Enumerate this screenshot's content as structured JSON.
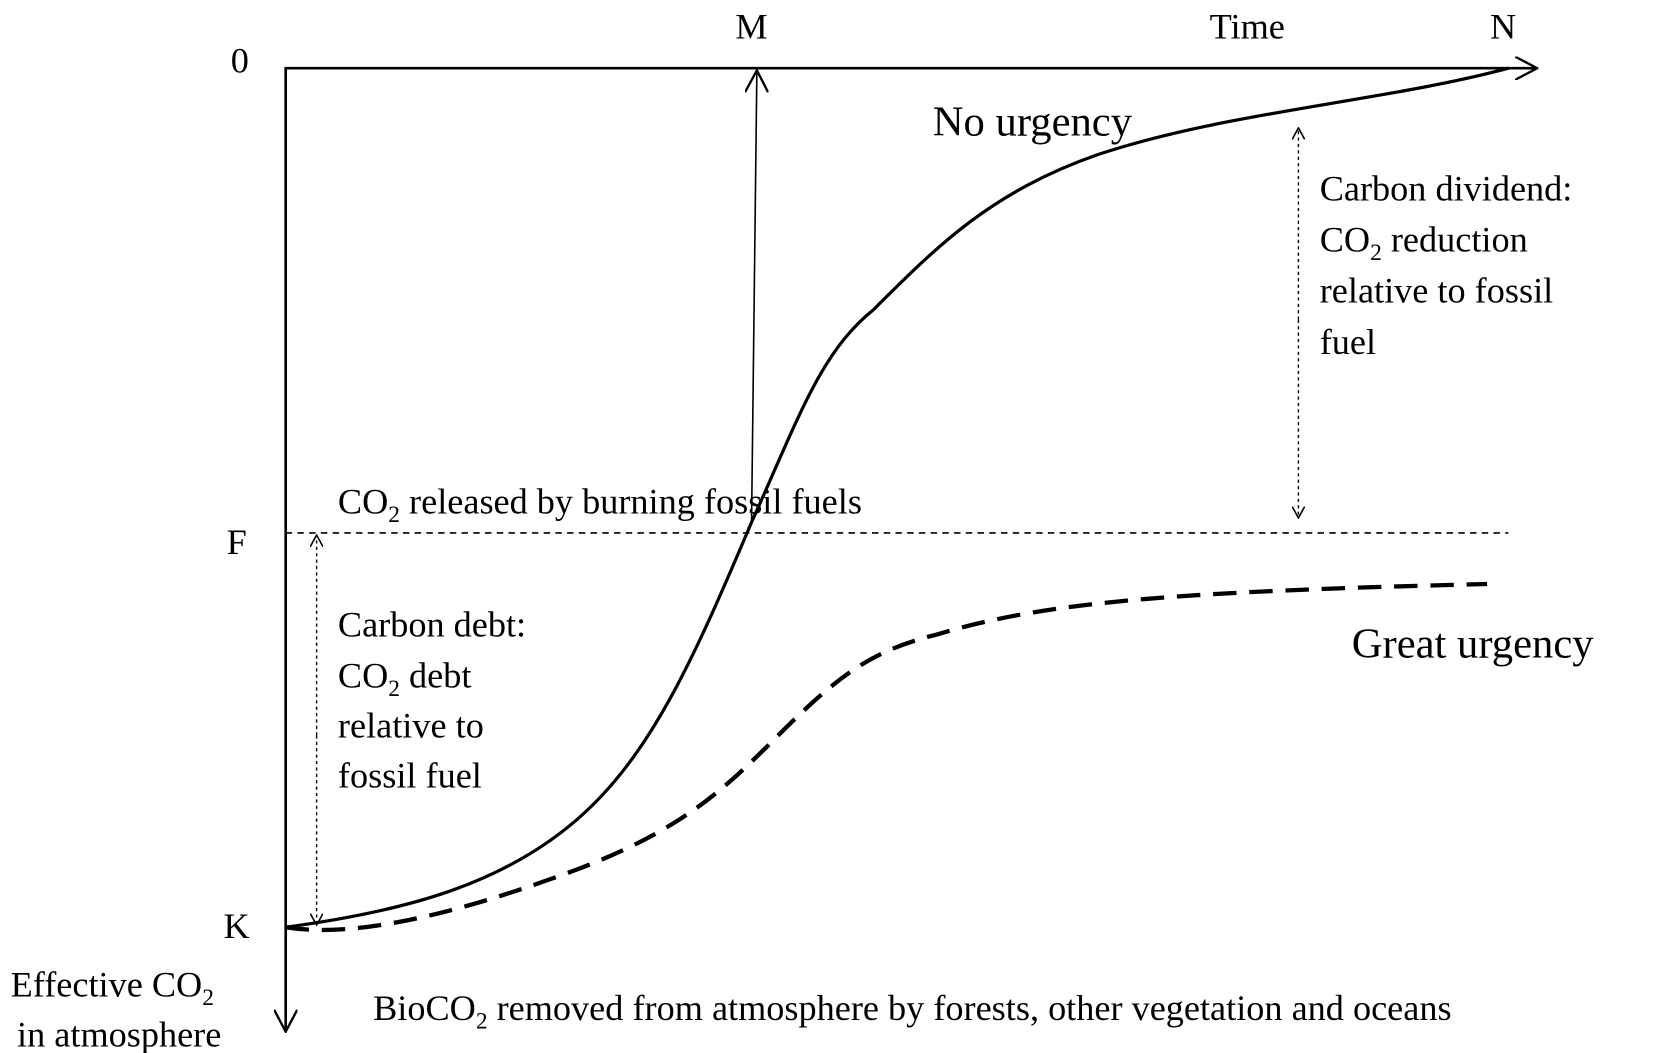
{
  "axis_labels": {
    "origin": "0",
    "m": "M",
    "time": "Time",
    "n": "N",
    "f": "F",
    "k": "K",
    "y_axis": {
      "line1": {
        "text": "Effective CO",
        "sub": "2"
      },
      "line2": "in atmosphere"
    }
  },
  "curves": {
    "no_urgency": "No urgency",
    "great_urgency": "Great urgency"
  },
  "fossil_line": {
    "text": "CO",
    "sub": "2",
    "rest": " released by burning fossil fuels"
  },
  "carbon_dividend": {
    "line1": "Carbon dividend:",
    "line2": {
      "text": "CO",
      "sub": "2",
      "rest": " reduction"
    },
    "line3": "relative to fossil",
    "line4": "fuel"
  },
  "carbon_debt": {
    "line1": "Carbon debt:",
    "line2": {
      "text": "CO",
      "sub": "2",
      "rest": " debt"
    },
    "line3": "relative to",
    "line4": "fossil fuel"
  },
  "bio_note": {
    "text": "BioCO",
    "sub": "2",
    "rest": " removed from atmosphere by forests, other vegetation and oceans"
  }
}
